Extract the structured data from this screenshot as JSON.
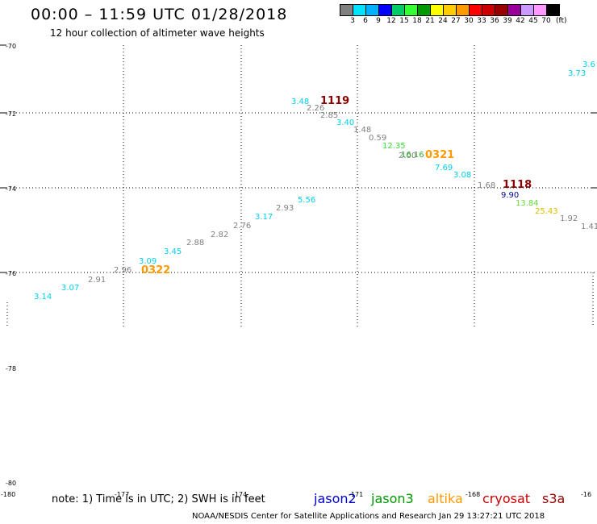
{
  "header": {
    "title": "00:00 – 11:59 UTC 01/28/2018",
    "subtitle": "12 hour collection of altimeter wave heights"
  },
  "legend": {
    "unit": "(ft)",
    "colors": [
      "#808080",
      "#00e5ff",
      "#00b2ff",
      "#0000ff",
      "#00cc66",
      "#33ff33",
      "#009900",
      "#ffff00",
      "#ffcc00",
      "#ff9900",
      "#ff0000",
      "#cc0000",
      "#990000",
      "#990099",
      "#cc99ff",
      "#ff99ff",
      "#000000"
    ],
    "labels": [
      "3",
      "6",
      "9",
      "12",
      "15",
      "18",
      "21",
      "24",
      "27",
      "30",
      "33",
      "36",
      "39",
      "42",
      "45",
      "70"
    ]
  },
  "axes": {
    "lat_labels": [
      "-70",
      "-72",
      "-74",
      "-76",
      "-78",
      "-80"
    ],
    "lon_labels": [
      "-180",
      "-177",
      "-174",
      "-171",
      "-168",
      "-16"
    ]
  },
  "track_labels": [
    {
      "text": "3.6",
      "color": "#00d0e8"
    },
    {
      "text": "3.73",
      "color": "#00d0e8"
    },
    {
      "text": "3.48",
      "color": "#00d0e8"
    },
    {
      "text": "1119",
      "color": "#8b0000"
    },
    {
      "text": "2.26",
      "color": "#808080"
    },
    {
      "text": "2.85",
      "color": "#808080"
    },
    {
      "text": "3.40",
      "color": "#00d0e8"
    },
    {
      "text": "1.48",
      "color": "#808080"
    },
    {
      "text": "0.59",
      "color": "#808080"
    },
    {
      "text": "12.35",
      "color": "#33dd33"
    },
    {
      "text": "2.00",
      "color": "#808080"
    },
    {
      "text": "16.16",
      "color": "#33aa33"
    },
    {
      "text": "0321",
      "color": "#ff9900"
    },
    {
      "text": "7.69",
      "color": "#00d0e8"
    },
    {
      "text": "3.08",
      "color": "#00d0e8"
    },
    {
      "text": "1.68",
      "color": "#808080"
    },
    {
      "text": "1118",
      "color": "#8b0000"
    },
    {
      "text": "9.90",
      "color": "#000099"
    },
    {
      "text": "13.84",
      "color": "#66dd33"
    },
    {
      "text": "25.43",
      "color": "#ddbb00"
    },
    {
      "text": "1.92",
      "color": "#808080"
    },
    {
      "text": "1.41",
      "color": "#808080"
    },
    {
      "text": "5.56",
      "color": "#00d0e8"
    },
    {
      "text": "2.93",
      "color": "#808080"
    },
    {
      "text": "3.17",
      "color": "#00d0e8"
    },
    {
      "text": "2.76",
      "color": "#808080"
    },
    {
      "text": "2.82",
      "color": "#808080"
    },
    {
      "text": "2.88",
      "color": "#808080"
    },
    {
      "text": "3.45",
      "color": "#00d0e8"
    },
    {
      "text": "3.09",
      "color": "#00d0e8"
    },
    {
      "text": "0322",
      "color": "#ff9900"
    },
    {
      "text": "2.96",
      "color": "#808080"
    },
    {
      "text": "2.91",
      "color": "#808080"
    },
    {
      "text": "3.07",
      "color": "#00d0e8"
    },
    {
      "text": "3.14",
      "color": "#00d0e8"
    }
  ],
  "footer": {
    "note": "note: 1) Time is in UTC; 2) SWH is in feet",
    "credit": "NOAA/NESDIS Center for Satellite Applications and Research    Jan 29 13:27:21 UTC 2018"
  },
  "satellites": [
    {
      "name": "jason2",
      "color": "#0000cc"
    },
    {
      "name": "jason3",
      "color": "#009900"
    },
    {
      "name": "altika",
      "color": "#ff9900"
    },
    {
      "name": "cryosat",
      "color": "#cc0000"
    },
    {
      "name": "s3a",
      "color": "#990000"
    }
  ]
}
